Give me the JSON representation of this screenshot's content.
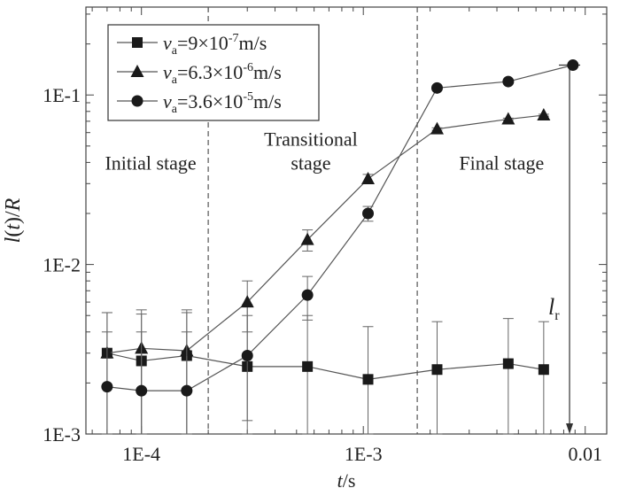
{
  "chart_data": {
    "type": "line",
    "xlabel": {
      "italic": "t",
      "normal": "/s"
    },
    "ylabel": {
      "italic1": "l",
      "normal1": "(",
      "italic2": "t",
      "normal2": ")/",
      "italic3": "R"
    },
    "x_scale": "log",
    "y_scale": "log",
    "xlim": [
      5.62e-05,
      0.0125
    ],
    "ylim": [
      0.001,
      0.33
    ],
    "x_ticks": [
      {
        "value": 0.0001,
        "label": "1E-4"
      },
      {
        "value": 0.001,
        "label": "1E-3"
      },
      {
        "value": 0.01,
        "label": "0.01"
      }
    ],
    "y_ticks": [
      {
        "value": 0.001,
        "label": "1E-3"
      },
      {
        "value": 0.01,
        "label": "1E-2"
      },
      {
        "value": 0.1,
        "label": "1E-1"
      }
    ],
    "grid": false,
    "legend_position": "top-left",
    "series": [
      {
        "name_var": "v",
        "name_sub": "a",
        "name_pre": "=9×10",
        "name_exp": "-7",
        "name_post": "m/s",
        "marker": "square",
        "x": [
          7e-05,
          0.0001,
          0.00016,
          0.0003,
          0.00056,
          0.00105,
          0.00215,
          0.0045,
          0.0065
        ],
        "y": [
          0.003,
          0.0027,
          0.0029,
          0.0025,
          0.0025,
          0.0021,
          0.0024,
          0.0026,
          0.0024
        ],
        "err_upper": [
          0.0052,
          0.0051,
          0.0052,
          0.0058,
          0.005,
          0.0043,
          0.0046,
          0.0048,
          0.0046
        ],
        "err_lower": [
          0.001,
          0.001,
          0.001,
          0.001,
          0.001,
          0.001,
          0.001,
          0.001,
          0.001
        ]
      },
      {
        "name_var": "v",
        "name_sub": "a",
        "name_pre": "=6.3×10",
        "name_exp": "-6",
        "name_post": "m/s",
        "marker": "triangle",
        "x": [
          7e-05,
          0.0001,
          0.00016,
          0.0003,
          0.00056,
          0.00105,
          0.00215,
          0.0045,
          0.0065
        ],
        "y": [
          0.003,
          0.0032,
          0.0031,
          0.006,
          0.014,
          0.032,
          0.063,
          0.072,
          0.076
        ],
        "err_upper": [
          0.0052,
          0.0054,
          0.0054,
          0.008,
          0.016,
          0.034,
          0.064,
          0.073,
          0.077
        ],
        "err_lower": [
          0.001,
          0.001,
          0.001,
          0.004,
          0.012,
          0.03,
          0.062,
          0.071,
          0.075
        ]
      },
      {
        "name_var": "v",
        "name_sub": "a",
        "name_pre": "=3.6×10",
        "name_exp": "-5",
        "name_post": "m/s",
        "marker": "circle",
        "x": [
          7e-05,
          0.0001,
          0.00016,
          0.0003,
          0.00056,
          0.00105,
          0.00215,
          0.0045,
          0.0088
        ],
        "y": [
          0.0019,
          0.0018,
          0.0018,
          0.0029,
          0.0066,
          0.02,
          0.11,
          0.12,
          0.15
        ],
        "err_upper": [
          0.004,
          0.004,
          0.004,
          0.005,
          0.0085,
          0.022,
          0.11,
          0.12,
          0.15
        ],
        "err_lower": [
          0.001,
          0.001,
          0.001,
          0.0012,
          0.0047,
          0.018,
          0.11,
          0.12,
          0.15
        ]
      }
    ],
    "stage_dividers_x": [
      0.0002,
      0.00175
    ],
    "stage_labels": [
      {
        "lines": [
          "Initial stage"
        ],
        "x": 0.00011,
        "y": 0.04
      },
      {
        "lines": [
          "Transitional",
          "stage"
        ],
        "x": 0.00058,
        "y": 0.04
      },
      {
        "lines": [
          "Final stage"
        ],
        "x": 0.0042,
        "y": 0.04
      }
    ],
    "annotation": {
      "var": "l",
      "sub": "r",
      "x": 0.0085,
      "y_top": 0.15,
      "y_bottom": 0.001
    }
  }
}
